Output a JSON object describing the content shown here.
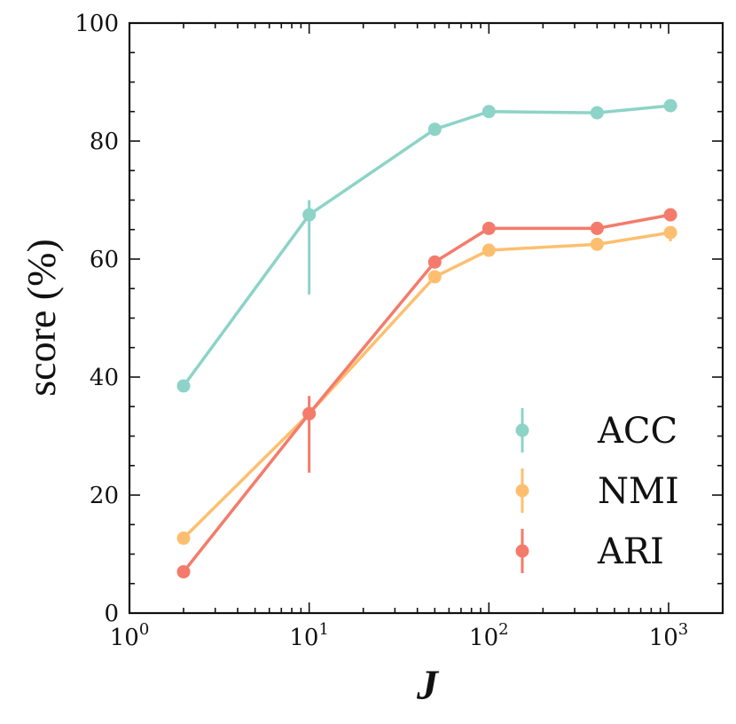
{
  "chart_data": {
    "type": "line",
    "xlabel": "J",
    "ylabel": "score (%)",
    "x_scale": "log",
    "xlim": [
      1,
      2000
    ],
    "ylim": [
      0,
      100
    ],
    "x_ticks": [
      {
        "value": 1,
        "base": "10",
        "exp": "0"
      },
      {
        "value": 10,
        "base": "10",
        "exp": "1"
      },
      {
        "value": 100,
        "base": "10",
        "exp": "2"
      },
      {
        "value": 1000,
        "base": "10",
        "exp": "3"
      }
    ],
    "y_ticks": [
      0,
      20,
      40,
      60,
      80,
      100
    ],
    "grid": false,
    "legend_position": "lower-right",
    "x": [
      2,
      10,
      50,
      100,
      400,
      1024
    ],
    "series": [
      {
        "name": "ACC",
        "color": "#8dd3c7",
        "values": [
          38.5,
          67.5,
          82,
          85,
          84.8,
          86
        ],
        "err_low": [
          0,
          13.5,
          0,
          0,
          0,
          0
        ],
        "err_high": [
          0,
          2.5,
          0,
          0,
          0,
          0
        ]
      },
      {
        "name": "NMI",
        "color": "#fdbf6f",
        "values": [
          12.7,
          33.8,
          57,
          61.5,
          62.5,
          64.5
        ],
        "err_low": [
          0,
          0,
          0,
          0,
          0,
          1.5
        ],
        "err_high": [
          0,
          0,
          0,
          0,
          0,
          0.5
        ]
      },
      {
        "name": "ARI",
        "color": "#f47b6b",
        "values": [
          7,
          33.8,
          59.5,
          65.2,
          65.2,
          67.5
        ],
        "err_low": [
          0,
          10,
          0,
          0,
          0,
          0
        ],
        "err_high": [
          0,
          3,
          0,
          0,
          0,
          0
        ]
      }
    ]
  }
}
